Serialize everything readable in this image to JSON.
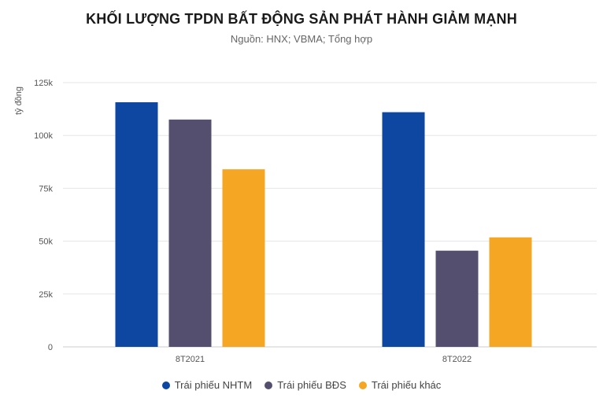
{
  "chart_data": {
    "type": "bar",
    "title": "KHỐI LƯỢNG TPDN BẤT ĐỘNG SẢN PHÁT HÀNH GIẢM MẠNH",
    "subtitle": "Nguồn: HNX; VBMA; Tổng hợp",
    "ylabel": "tỷ đồng",
    "ylim": [
      0,
      125000
    ],
    "yticks": [
      0,
      25000,
      50000,
      75000,
      100000,
      125000
    ],
    "ytick_labels": [
      "0",
      "25k",
      "50k",
      "75k",
      "100k",
      "125k"
    ],
    "categories": [
      "8T2021",
      "8T2022"
    ],
    "series": [
      {
        "name": "Trái phiếu NHTM",
        "color": "#0d47a1",
        "values": [
          115700,
          111000
        ]
      },
      {
        "name": "Trái phiếu BĐS",
        "color": "#544f6e",
        "values": [
          107500,
          45500
        ]
      },
      {
        "name": "Trái phiếu khác",
        "color": "#f5a623",
        "values": [
          84000,
          51800
        ]
      }
    ],
    "grid": true,
    "legend": "bottom"
  }
}
